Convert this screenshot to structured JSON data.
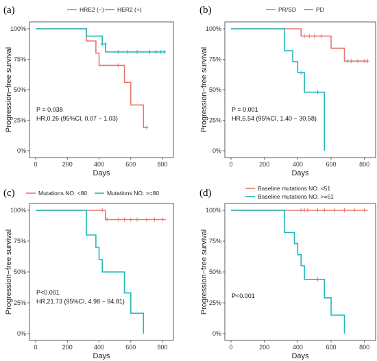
{
  "chart_data": [
    {
      "panel": "(a)",
      "type": "line",
      "xlabel": "Days",
      "ylabel": "Progression−free survival",
      "xlim": [
        0,
        830
      ],
      "ylim": [
        0,
        1
      ],
      "x_ticks": [
        0,
        200,
        400,
        600,
        800
      ],
      "y_ticks": [
        "0%",
        "25%",
        "50%",
        "75%",
        "100%"
      ],
      "legend_placement": "top",
      "annotations": [
        "P = 0.038",
        "HR,0.26 (95%CI, 0.07 − 1.03)"
      ],
      "series": [
        {
          "name": "HRE2 (−)",
          "color": "#E8776F",
          "steps": [
            [
              0,
              1.0
            ],
            [
              320,
              0.9
            ],
            [
              380,
              0.8
            ],
            [
              400,
              0.7
            ],
            [
              560,
              0.56
            ],
            [
              600,
              0.375
            ],
            [
              680,
              0.19
            ],
            [
              700,
              0.19
            ]
          ],
          "censored": [
            [
              520,
              0.7
            ],
            [
              700,
              0.19
            ]
          ]
        },
        {
          "name": "HER2 (+)",
          "color": "#1FB8B8",
          "steps": [
            [
              0,
              1.0
            ],
            [
              320,
              0.94
            ],
            [
              420,
              0.875
            ],
            [
              440,
              0.81
            ],
            [
              820,
              0.81
            ]
          ],
          "censored": [
            [
              420,
              0.875
            ],
            [
              440,
              0.875
            ],
            [
              520,
              0.81
            ],
            [
              580,
              0.81
            ],
            [
              640,
              0.81
            ],
            [
              720,
              0.81
            ],
            [
              760,
              0.81
            ],
            [
              790,
              0.81
            ],
            [
              810,
              0.81
            ]
          ]
        }
      ]
    },
    {
      "panel": "(b)",
      "type": "line",
      "xlabel": "Days",
      "ylabel": "Progression−free survival",
      "xlim": [
        0,
        830
      ],
      "ylim": [
        0,
        1
      ],
      "x_ticks": [
        0,
        200,
        400,
        600,
        800
      ],
      "y_ticks": [
        "0%",
        "25%",
        "50%",
        "75%",
        "100%"
      ],
      "legend_placement": "top",
      "annotations": [
        "P = 0.001",
        "HR,6.54 (95%CI, 1.40 − 30.58)"
      ],
      "series": [
        {
          "name": "PR/SD",
          "color": "#E8776F",
          "steps": [
            [
              0,
              1.0
            ],
            [
              420,
              0.94
            ],
            [
              600,
              0.84
            ],
            [
              680,
              0.735
            ],
            [
              820,
              0.735
            ]
          ],
          "censored": [
            [
              440,
              0.94
            ],
            [
              470,
              0.94
            ],
            [
              500,
              0.94
            ],
            [
              540,
              0.94
            ],
            [
              700,
              0.735
            ],
            [
              720,
              0.735
            ],
            [
              760,
              0.735
            ],
            [
              800,
              0.735
            ],
            [
              820,
              0.735
            ]
          ]
        },
        {
          "name": "PD",
          "color": "#1FB8B8",
          "steps": [
            [
              0,
              1.0
            ],
            [
              320,
              0.82
            ],
            [
              370,
              0.73
            ],
            [
              400,
              0.64
            ],
            [
              440,
              0.48
            ],
            [
              560,
              0.0
            ]
          ],
          "censored": [
            [
              420,
              0.64
            ],
            [
              520,
              0.48
            ]
          ]
        }
      ]
    },
    {
      "panel": "(c)",
      "type": "line",
      "xlabel": "Days",
      "ylabel": "Progression−free survival",
      "xlim": [
        0,
        830
      ],
      "ylim": [
        0,
        1
      ],
      "x_ticks": [
        0,
        200,
        400,
        600,
        800
      ],
      "y_ticks": [
        "0%",
        "25%",
        "50%",
        "75%",
        "100%"
      ],
      "legend_placement": "top",
      "annotations": [
        "P<0.001",
        "HR,21.73 (95%CI, 4.98 − 94.81)"
      ],
      "series": [
        {
          "name": "Mutations NO. <80",
          "color": "#E8776F",
          "steps": [
            [
              0,
              1.0
            ],
            [
              440,
              0.925
            ],
            [
              820,
              0.925
            ]
          ],
          "censored": [
            [
              420,
              1.0
            ],
            [
              450,
              0.925
            ],
            [
              520,
              0.925
            ],
            [
              560,
              0.925
            ],
            [
              600,
              0.925
            ],
            [
              640,
              0.925
            ],
            [
              700,
              0.925
            ],
            [
              750,
              0.925
            ],
            [
              800,
              0.925
            ]
          ]
        },
        {
          "name": "Mutations NO. >=80",
          "color": "#1FB8B8",
          "steps": [
            [
              0,
              1.0
            ],
            [
              320,
              0.8
            ],
            [
              380,
              0.7
            ],
            [
              400,
              0.6
            ],
            [
              420,
              0.5
            ],
            [
              560,
              0.33
            ],
            [
              600,
              0.165
            ],
            [
              680,
              0.0
            ]
          ],
          "censored": []
        }
      ]
    },
    {
      "panel": "(d)",
      "type": "line",
      "xlabel": "Days",
      "ylabel": "Progression−free survival",
      "xlim": [
        0,
        830
      ],
      "ylim": [
        0,
        1
      ],
      "x_ticks": [
        0,
        200,
        400,
        600,
        800
      ],
      "y_ticks": [
        "0%",
        "25%",
        "50%",
        "75%",
        "100%"
      ],
      "legend_placement": "top",
      "annotations": [
        "P<0.001"
      ],
      "series": [
        {
          "name": "Baseline mutations NO. <51",
          "color": "#E8776F",
          "steps": [
            [
              0,
              1.0
            ],
            [
              820,
              1.0
            ]
          ],
          "censored": [
            [
              420,
              1.0
            ],
            [
              440,
              1.0
            ],
            [
              460,
              1.0
            ],
            [
              520,
              1.0
            ],
            [
              560,
              1.0
            ],
            [
              620,
              1.0
            ],
            [
              680,
              1.0
            ],
            [
              740,
              1.0
            ],
            [
              800,
              1.0
            ]
          ]
        },
        {
          "name": "Baseline mutations NO. >=51",
          "color": "#1FB8B8",
          "steps": [
            [
              0,
              1.0
            ],
            [
              320,
              0.82
            ],
            [
              380,
              0.73
            ],
            [
              400,
              0.64
            ],
            [
              420,
              0.55
            ],
            [
              440,
              0.44
            ],
            [
              560,
              0.29
            ],
            [
              600,
              0.15
            ],
            [
              680,
              0.0
            ]
          ],
          "censored": [
            [
              520,
              0.44
            ]
          ]
        }
      ]
    }
  ]
}
